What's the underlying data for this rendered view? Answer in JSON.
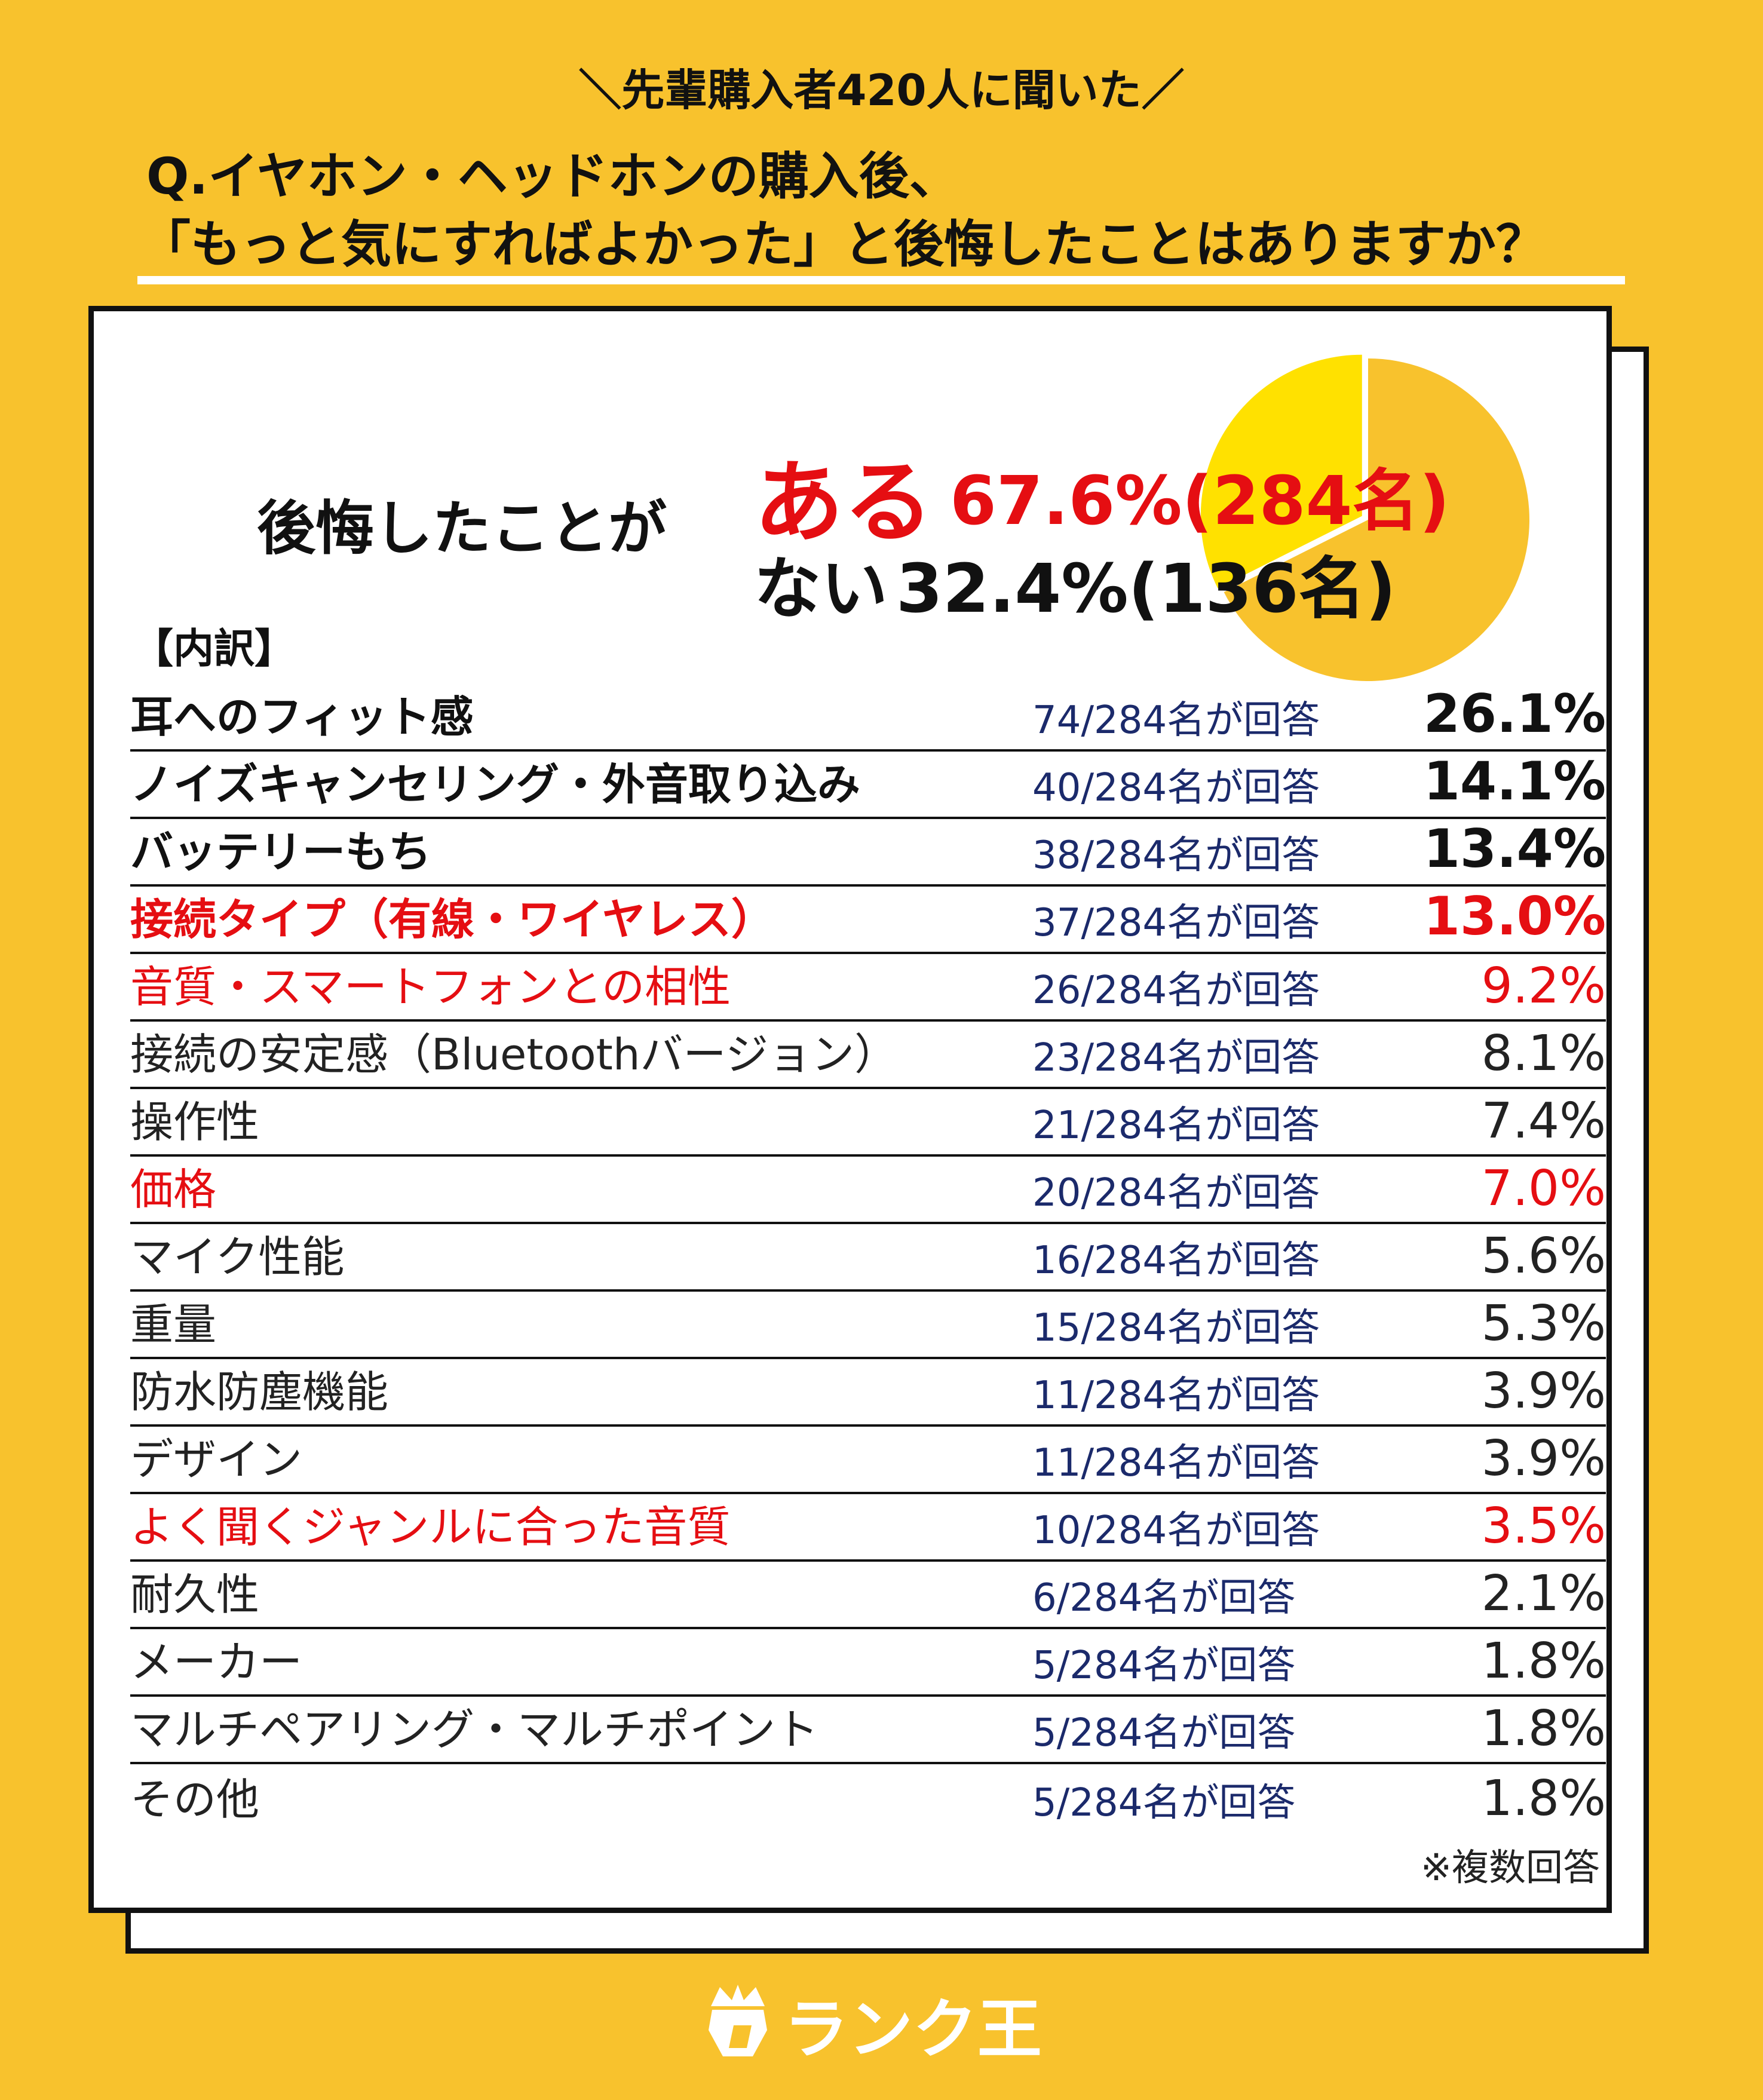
{
  "header": {
    "subtitle": "＼先輩購入者420人に聞いた／",
    "question_line1": "Q.イヤホン・ヘッドホンの購入後、",
    "question_line2": "「もっと気にすればよかった」と後悔したことはありますか？"
  },
  "summary": {
    "lead": "後悔したことが",
    "yes_word": "ある",
    "yes_value": "67.6%(284名)",
    "no_word": "ない",
    "no_value": "32.4%(136名)"
  },
  "breakdown_label": "【内訳】",
  "note": "※複数回答",
  "logo": {
    "text": "ランク王",
    "icon": "lion-crown-icon"
  },
  "colors": {
    "background": "#f8c22d",
    "accent_red": "#e50e12",
    "pie_yes": "#f8c22d",
    "pie_no": "#ffe100",
    "count_text": "#1b2a6b"
  },
  "chart_data": [
    {
      "type": "pie",
      "categories": [
        "ある",
        "ない"
      ],
      "values": [
        67.6,
        32.4
      ],
      "counts": [
        284,
        136
      ]
    },
    {
      "type": "table",
      "columns": [
        "item",
        "count",
        "percent"
      ],
      "rows": [
        {
          "label": "耳へのフィット感",
          "count": "74/284名が回答",
          "percent": "26.1%",
          "value": 26.1,
          "style": "bold"
        },
        {
          "label": "ノイズキャンセリング・外音取り込み",
          "count": "40/284名が回答",
          "percent": "14.1%",
          "value": 14.1,
          "style": "bold"
        },
        {
          "label": "バッテリーもち",
          "count": "38/284名が回答",
          "percent": "13.4%",
          "value": 13.4,
          "style": "bold"
        },
        {
          "label": "接続タイプ（有線・ワイヤレス）",
          "count": "37/284名が回答",
          "percent": "13.0%",
          "value": 13.0,
          "style": "bold red"
        },
        {
          "label": "音質・スマートフォンとの相性",
          "count": "26/284名が回答",
          "percent": "9.2%",
          "value": 9.2,
          "style": "red"
        },
        {
          "label": "接続の安定感（Bluetoothバージョン）",
          "count": "23/284名が回答",
          "percent": "8.1%",
          "value": 8.1,
          "style": ""
        },
        {
          "label": "操作性",
          "count": "21/284名が回答",
          "percent": "7.4%",
          "value": 7.4,
          "style": ""
        },
        {
          "label": "価格",
          "count": "20/284名が回答",
          "percent": "7.0%",
          "value": 7.0,
          "style": "red"
        },
        {
          "label": "マイク性能",
          "count": "16/284名が回答",
          "percent": "5.6%",
          "value": 5.6,
          "style": ""
        },
        {
          "label": "重量",
          "count": "15/284名が回答",
          "percent": "5.3%",
          "value": 5.3,
          "style": ""
        },
        {
          "label": "防水防塵機能",
          "count": "11/284名が回答",
          "percent": "3.9%",
          "value": 3.9,
          "style": ""
        },
        {
          "label": "デザイン",
          "count": "11/284名が回答",
          "percent": "3.9%",
          "value": 3.9,
          "style": ""
        },
        {
          "label": "よく聞くジャンルに合った音質",
          "count": "10/284名が回答",
          "percent": "3.5%",
          "value": 3.5,
          "style": "red"
        },
        {
          "label": "耐久性",
          "count": "6/284名が回答",
          "percent": "2.1%",
          "value": 2.1,
          "style": ""
        },
        {
          "label": "メーカー",
          "count": "5/284名が回答",
          "percent": "1.8%",
          "value": 1.8,
          "style": ""
        },
        {
          "label": "マルチペアリング・マルチポイント",
          "count": "5/284名が回答",
          "percent": "1.8%",
          "value": 1.8,
          "style": ""
        },
        {
          "label": "その他",
          "count": "5/284名が回答",
          "percent": "1.8%",
          "value": 1.8,
          "style": ""
        }
      ]
    }
  ]
}
